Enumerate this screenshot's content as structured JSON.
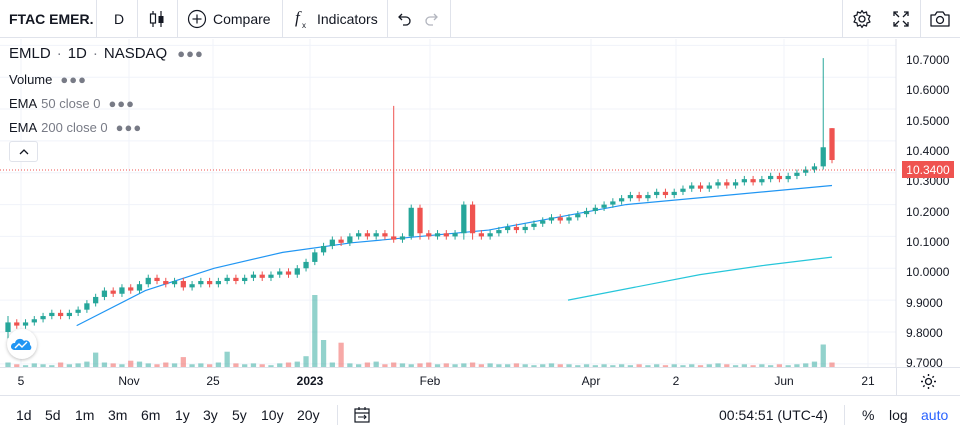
{
  "toolbar": {
    "symbol": "FTAC EMER.",
    "interval": "D",
    "compare_label": "Compare",
    "indicators_label": "Indicators"
  },
  "legend": {
    "symbol": "EMLD",
    "interval": "1D",
    "exchange": "NASDAQ",
    "volume_label": "Volume",
    "ema1_name": "EMA",
    "ema1_params": "50 close 0",
    "ema2_name": "EMA",
    "ema2_params": "200 close 0"
  },
  "price_axis": {
    "ticks": [
      "10.7000",
      "10.6000",
      "10.5000",
      "10.4000",
      "10.3000",
      "10.2000",
      "10.1000",
      "10.0000",
      "9.9000",
      "9.8000",
      "9.7000"
    ],
    "last_price": "10.3400",
    "last_price_color": "#ef5350"
  },
  "time_axis": {
    "ticks": [
      {
        "label": "5",
        "bold": false
      },
      {
        "label": "Nov",
        "bold": false
      },
      {
        "label": "25",
        "bold": false
      },
      {
        "label": "2023",
        "bold": true
      },
      {
        "label": "Feb",
        "bold": false
      },
      {
        "label": "Apr",
        "bold": false
      },
      {
        "label": "2",
        "bold": false
      },
      {
        "label": "Jun",
        "bold": false
      },
      {
        "label": "21",
        "bold": false
      }
    ]
  },
  "bottom_bar": {
    "ranges": [
      "1d",
      "5d",
      "1m",
      "3m",
      "6m",
      "1y",
      "3y",
      "5y",
      "10y",
      "20y"
    ],
    "clock": "00:54:51 (UTC-4)",
    "percent_label": "%",
    "log_label": "log",
    "auto_label": "auto"
  },
  "colors": {
    "up": "#26a69a",
    "down": "#ef5350",
    "ema50": "#2196f3",
    "ema200": "#26c6da",
    "accent": "#2962ff"
  },
  "chart_data": {
    "type": "candlestick",
    "ylim": [
      9.69,
      10.72
    ],
    "ema50": [
      10.45,
      9.82,
      9.93,
      10.0,
      10.05,
      10.08,
      10.1,
      10.12,
      10.16,
      10.2,
      10.22,
      10.24,
      10.26
    ],
    "ema200": [
      9.9,
      9.94,
      9.98,
      10.01,
      10.035
    ],
    "candles": [
      [
        9.8,
        9.83,
        9.78,
        9.85
      ],
      [
        9.83,
        9.82,
        9.81,
        9.84
      ],
      [
        9.82,
        9.83,
        9.81,
        9.84
      ],
      [
        9.83,
        9.84,
        9.82,
        9.85
      ],
      [
        9.84,
        9.85,
        9.83,
        9.86
      ],
      [
        9.85,
        9.86,
        9.84,
        9.87
      ],
      [
        9.86,
        9.85,
        9.84,
        9.87
      ],
      [
        9.85,
        9.86,
        9.84,
        9.87
      ],
      [
        9.86,
        9.87,
        9.85,
        9.88
      ],
      [
        9.87,
        9.89,
        9.86,
        9.9
      ],
      [
        9.89,
        9.91,
        9.88,
        9.92
      ],
      [
        9.91,
        9.93,
        9.9,
        9.94
      ],
      [
        9.93,
        9.92,
        9.91,
        9.94
      ],
      [
        9.92,
        9.94,
        9.91,
        9.95
      ],
      [
        9.94,
        9.93,
        9.92,
        9.95
      ],
      [
        9.93,
        9.95,
        9.92,
        9.96
      ],
      [
        9.95,
        9.97,
        9.94,
        9.98
      ],
      [
        9.97,
        9.96,
        9.95,
        9.98
      ],
      [
        9.96,
        9.95,
        9.94,
        9.97
      ],
      [
        9.95,
        9.96,
        9.94,
        9.97
      ],
      [
        9.96,
        9.94,
        9.93,
        9.97
      ],
      [
        9.94,
        9.95,
        9.93,
        9.96
      ],
      [
        9.95,
        9.96,
        9.94,
        9.97
      ],
      [
        9.96,
        9.95,
        9.94,
        9.97
      ],
      [
        9.95,
        9.96,
        9.94,
        9.97
      ],
      [
        9.96,
        9.97,
        9.95,
        9.98
      ],
      [
        9.97,
        9.96,
        9.95,
        9.98
      ],
      [
        9.96,
        9.97,
        9.95,
        9.98
      ],
      [
        9.97,
        9.98,
        9.96,
        9.99
      ],
      [
        9.98,
        9.97,
        9.96,
        9.99
      ],
      [
        9.97,
        9.98,
        9.96,
        9.99
      ],
      [
        9.98,
        9.99,
        9.97,
        10.0
      ],
      [
        9.99,
        9.98,
        9.97,
        10.0
      ],
      [
        9.98,
        10.0,
        9.97,
        10.01
      ],
      [
        10.0,
        10.02,
        9.99,
        10.03
      ],
      [
        10.02,
        10.05,
        10.01,
        10.06
      ],
      [
        10.05,
        10.07,
        10.04,
        10.08
      ],
      [
        10.07,
        10.09,
        10.06,
        10.1
      ],
      [
        10.09,
        10.08,
        10.07,
        10.1
      ],
      [
        10.08,
        10.1,
        10.07,
        10.11
      ],
      [
        10.1,
        10.11,
        10.09,
        10.12
      ],
      [
        10.11,
        10.1,
        10.09,
        10.12
      ],
      [
        10.1,
        10.11,
        10.09,
        10.12
      ],
      [
        10.11,
        10.1,
        10.09,
        10.12
      ],
      [
        10.1,
        10.09,
        10.08,
        10.51
      ],
      [
        10.09,
        10.1,
        10.08,
        10.11
      ],
      [
        10.1,
        10.19,
        10.09,
        10.2
      ],
      [
        10.19,
        10.11,
        10.09,
        10.2
      ],
      [
        10.11,
        10.1,
        10.09,
        10.12
      ],
      [
        10.1,
        10.11,
        10.09,
        10.12
      ],
      [
        10.11,
        10.1,
        10.09,
        10.12
      ],
      [
        10.1,
        10.11,
        10.09,
        10.12
      ],
      [
        10.11,
        10.2,
        10.09,
        10.21
      ],
      [
        10.2,
        10.11,
        10.09,
        10.21
      ],
      [
        10.11,
        10.1,
        10.09,
        10.12
      ],
      [
        10.1,
        10.11,
        10.09,
        10.12
      ],
      [
        10.11,
        10.12,
        10.1,
        10.13
      ],
      [
        10.12,
        10.13,
        10.11,
        10.14
      ],
      [
        10.13,
        10.12,
        10.11,
        10.14
      ],
      [
        10.12,
        10.13,
        10.11,
        10.14
      ],
      [
        10.13,
        10.14,
        10.12,
        10.15
      ],
      [
        10.14,
        10.15,
        10.13,
        10.16
      ],
      [
        10.15,
        10.16,
        10.14,
        10.17
      ],
      [
        10.16,
        10.15,
        10.14,
        10.17
      ],
      [
        10.15,
        10.16,
        10.14,
        10.17
      ],
      [
        10.16,
        10.17,
        10.15,
        10.18
      ],
      [
        10.17,
        10.18,
        10.16,
        10.19
      ],
      [
        10.18,
        10.19,
        10.17,
        10.2
      ],
      [
        10.19,
        10.2,
        10.18,
        10.21
      ],
      [
        10.2,
        10.21,
        10.19,
        10.22
      ],
      [
        10.21,
        10.22,
        10.2,
        10.23
      ],
      [
        10.22,
        10.23,
        10.21,
        10.24
      ],
      [
        10.23,
        10.22,
        10.21,
        10.24
      ],
      [
        10.22,
        10.23,
        10.21,
        10.24
      ],
      [
        10.23,
        10.24,
        10.22,
        10.25
      ],
      [
        10.24,
        10.23,
        10.22,
        10.25
      ],
      [
        10.23,
        10.24,
        10.22,
        10.25
      ],
      [
        10.24,
        10.25,
        10.23,
        10.26
      ],
      [
        10.25,
        10.26,
        10.24,
        10.27
      ],
      [
        10.26,
        10.25,
        10.24,
        10.27
      ],
      [
        10.25,
        10.26,
        10.24,
        10.27
      ],
      [
        10.26,
        10.27,
        10.25,
        10.28
      ],
      [
        10.27,
        10.26,
        10.25,
        10.28
      ],
      [
        10.26,
        10.27,
        10.25,
        10.28
      ],
      [
        10.27,
        10.28,
        10.26,
        10.29
      ],
      [
        10.28,
        10.27,
        10.26,
        10.29
      ],
      [
        10.27,
        10.28,
        10.26,
        10.29
      ],
      [
        10.28,
        10.29,
        10.27,
        10.3
      ],
      [
        10.29,
        10.28,
        10.27,
        10.3
      ],
      [
        10.28,
        10.29,
        10.27,
        10.3
      ],
      [
        10.29,
        10.3,
        10.28,
        10.31
      ],
      [
        10.3,
        10.31,
        10.29,
        10.32
      ],
      [
        10.31,
        10.32,
        10.3,
        10.33
      ],
      [
        10.32,
        10.38,
        10.31,
        10.66
      ],
      [
        10.44,
        10.34,
        10.33,
        10.44
      ]
    ],
    "volume": [
      0.05,
      0.03,
      0.02,
      0.04,
      0.03,
      0.02,
      0.05,
      0.03,
      0.04,
      0.06,
      0.16,
      0.05,
      0.04,
      0.03,
      0.07,
      0.06,
      0.04,
      0.03,
      0.05,
      0.04,
      0.11,
      0.03,
      0.04,
      0.03,
      0.05,
      0.17,
      0.04,
      0.03,
      0.04,
      0.03,
      0.02,
      0.04,
      0.05,
      0.06,
      0.12,
      0.8,
      0.3,
      0.05,
      0.27,
      0.04,
      0.03,
      0.05,
      0.06,
      0.03,
      0.05,
      0.04,
      0.03,
      0.04,
      0.05,
      0.03,
      0.04,
      0.03,
      0.04,
      0.05,
      0.03,
      0.04,
      0.03,
      0.03,
      0.04,
      0.03,
      0.02,
      0.03,
      0.04,
      0.03,
      0.03,
      0.02,
      0.03,
      0.02,
      0.03,
      0.02,
      0.03,
      0.02,
      0.03,
      0.02,
      0.03,
      0.02,
      0.03,
      0.02,
      0.03,
      0.02,
      0.03,
      0.04,
      0.03,
      0.02,
      0.03,
      0.02,
      0.03,
      0.02,
      0.03,
      0.02,
      0.03,
      0.04,
      0.06,
      0.25,
      0.05
    ]
  }
}
